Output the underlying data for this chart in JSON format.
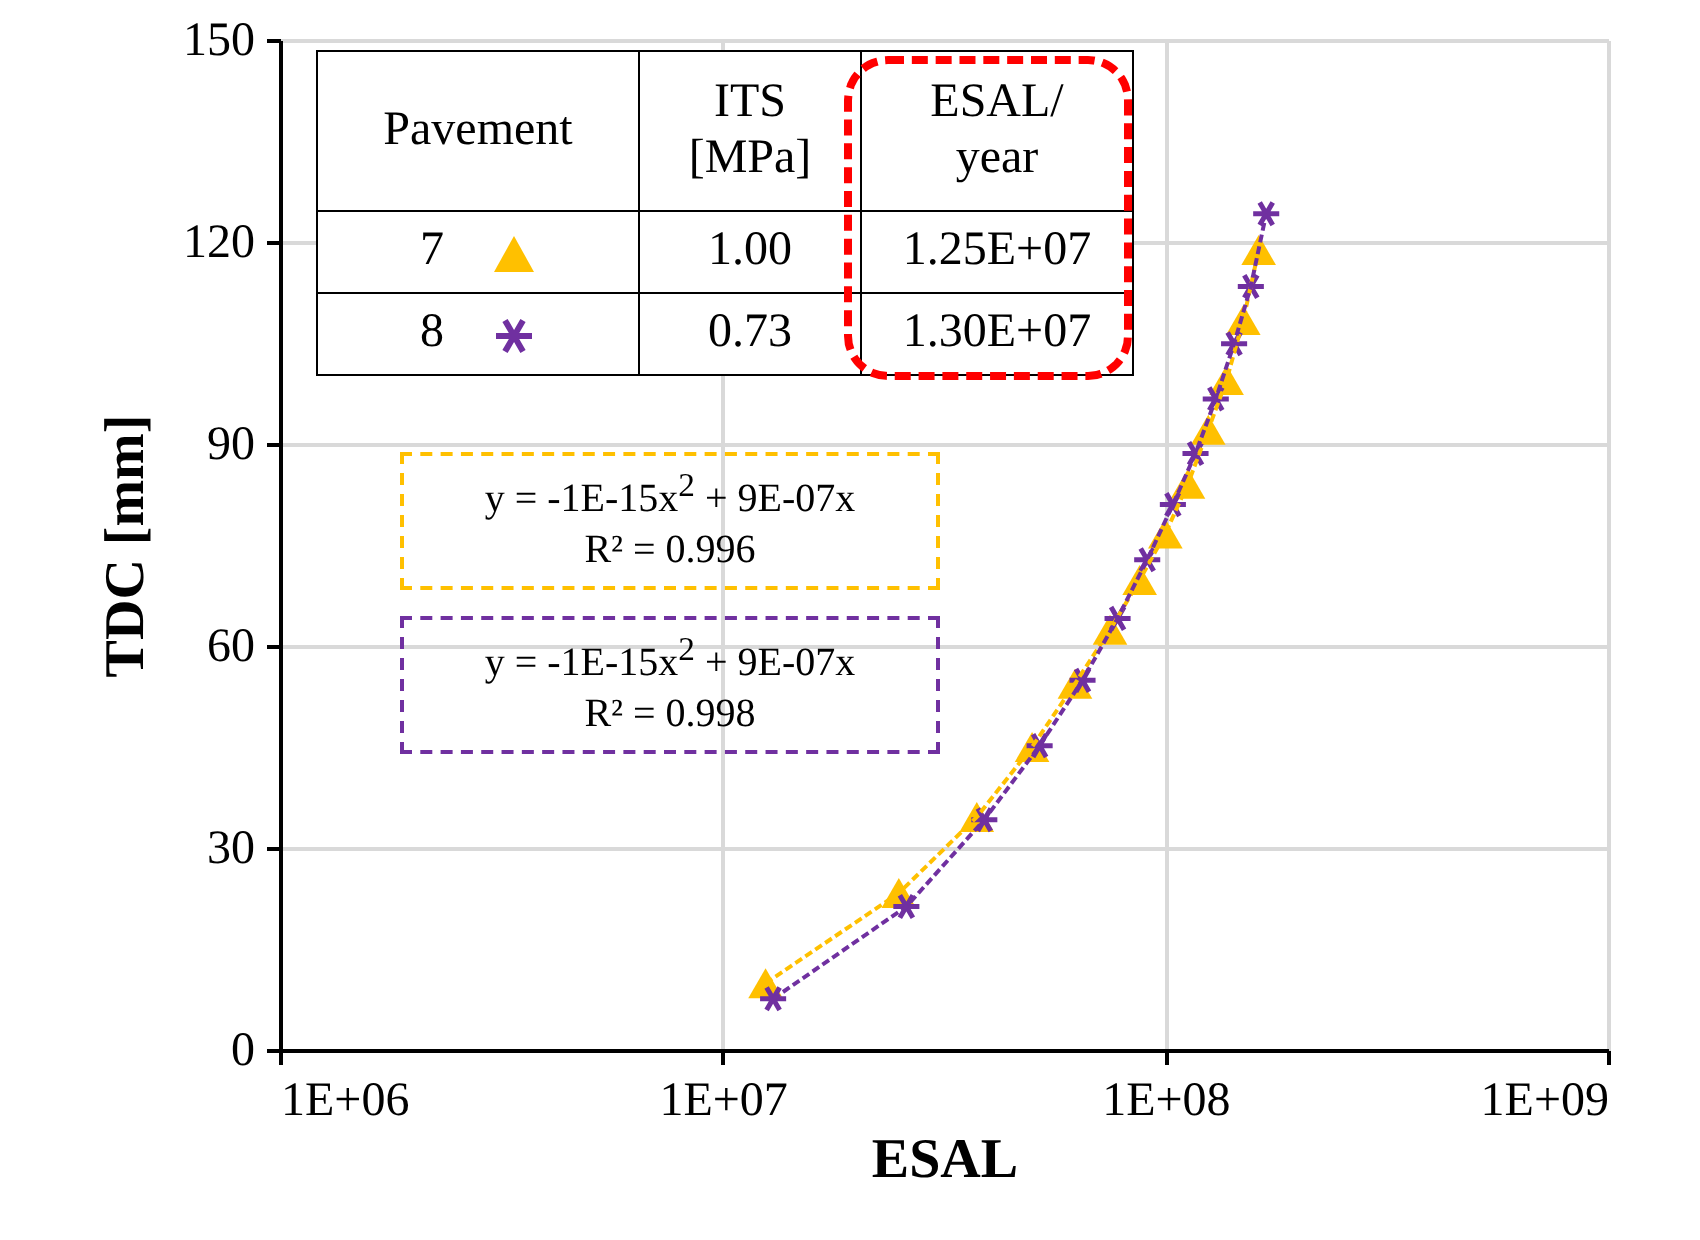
{
  "chart_data": {
    "type": "scatter",
    "xlabel": "ESAL",
    "ylabel": "TDC [mm]",
    "log": "x",
    "xlim": [
      1000000,
      1000000000
    ],
    "xticks": [
      {
        "value": 1000000,
        "label": "1E+06"
      },
      {
        "value": 10000000,
        "label": "1E+07"
      },
      {
        "value": 100000000,
        "label": "1E+08"
      },
      {
        "value": 1000000000,
        "label": "1E+09"
      }
    ],
    "ylim": [
      0,
      150
    ],
    "yticks": [
      0,
      30,
      60,
      90,
      120,
      150
    ],
    "grid": true,
    "legend": "top left",
    "series": [
      {
        "name": "7",
        "marker": "triangle",
        "color": "#ffc000",
        "x": [
          12500000,
          25000000,
          37500000,
          50000000,
          62500000,
          75000000,
          87500000,
          100000000,
          112500000,
          125000000,
          137500000,
          150000000,
          162500000
        ],
        "values": [
          9.9,
          23.3,
          34.6,
          45,
          54.4,
          62.4,
          69.8,
          76.7,
          84.1,
          92.1,
          99.5,
          108.4,
          118.8
        ]
      },
      {
        "name": "8",
        "marker": "cross",
        "color": "#7030a0",
        "x": [
          13000000,
          26000000,
          39000000,
          52000000,
          65000000,
          78000000,
          91000000,
          104000000,
          117000000,
          130000000,
          143000000,
          156000000,
          169000000
        ],
        "values": [
          7.6,
          21.3,
          34.2,
          45.2,
          54.9,
          64.1,
          72.8,
          81,
          88.6,
          96.7,
          104.9,
          113.4,
          124.2
        ]
      },
      {
        "type": "line",
        "line_style": "dashed",
        "color": "#ffc000",
        "x": [
          12500000,
          25000000,
          37500000,
          50000000,
          62500000,
          75000000,
          87500000,
          100000000,
          112500000,
          125000000,
          137500000,
          150000000,
          162500000
        ],
        "values": [
          9.9,
          23.3,
          34.6,
          45,
          54.4,
          62.4,
          69.8,
          76.7,
          84.1,
          92.1,
          99.5,
          108.4,
          118.8
        ]
      },
      {
        "type": "line",
        "line_style": "dashed",
        "color": "#7030a0",
        "x": [
          13000000,
          26000000,
          39000000,
          52000000,
          65000000,
          78000000,
          91000000,
          104000000,
          117000000,
          130000000,
          143000000,
          156000000,
          169000000
        ],
        "values": [
          7.6,
          21.3,
          34.2,
          45.2,
          54.9,
          64.1,
          72.8,
          81,
          88.6,
          96.7,
          104.9,
          113.4,
          124.2
        ]
      }
    ],
    "annotations": [
      "Pavement",
      "ITS [MPa]",
      "ESAL/ year",
      "1.00",
      "1.25E+07",
      "0.73",
      "1.30E+07",
      "y = -1E-15x$^{2}$ + 9E-07x",
      "R² = 0.996",
      "y = -1E-15x$^{2}$ + 9E-07x",
      "R² = 0.998"
    ]
  }
}
